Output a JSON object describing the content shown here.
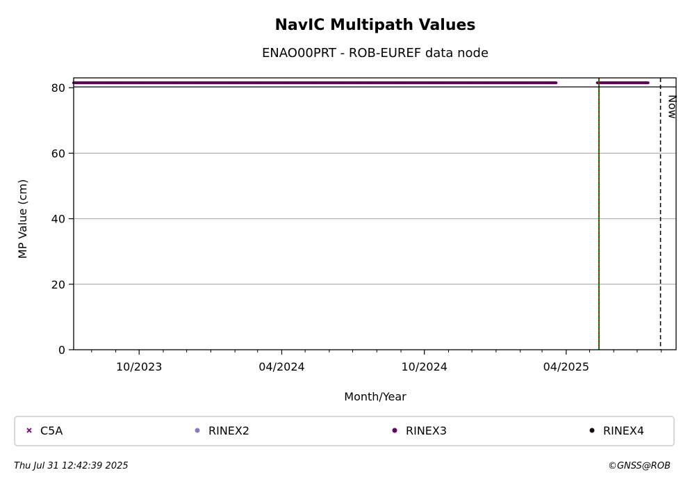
{
  "chart_data": {
    "type": "scatter",
    "title": "NavIC Multipath Values",
    "subtitle": "ENAO00PRT - ROB-EUREF data node",
    "xlabel": "Month/Year",
    "ylabel": "MP Value (cm)",
    "xlim": [
      "2023-07-09",
      "2025-08-20"
    ],
    "ylim": [
      0,
      83
    ],
    "y_clip": 80,
    "x_ticks": [
      {
        "date": "2023-10-01",
        "label": "10/2023"
      },
      {
        "date": "2024-04-01",
        "label": "04/2024"
      },
      {
        "date": "2024-10-01",
        "label": "10/2024"
      },
      {
        "date": "2025-04-01",
        "label": "04/2025"
      }
    ],
    "x_minor_ticks": [
      "2023-08-01",
      "2023-09-01",
      "2023-11-01",
      "2023-12-01",
      "2024-01-01",
      "2024-02-01",
      "2024-03-01",
      "2024-05-01",
      "2024-06-01",
      "2024-07-01",
      "2024-08-01",
      "2024-09-01",
      "2024-11-01",
      "2024-12-01",
      "2025-01-01",
      "2025-02-01",
      "2025-03-01",
      "2025-05-01",
      "2025-06-01",
      "2025-07-01",
      "2025-08-01"
    ],
    "y_ticks": [
      0,
      20,
      40,
      60,
      80
    ],
    "grid": "y",
    "series": [
      {
        "name": "C5A",
        "color": "#7b1a7b",
        "marker": "x",
        "segments": []
      },
      {
        "name": "RINEX2",
        "color": "#8080c0",
        "marker": "dot",
        "segments": []
      },
      {
        "name": "RINEX3",
        "color": "#660066",
        "marker": "dot",
        "y": 81.5,
        "segments": [
          [
            "2023-07-09",
            "2025-03-19"
          ],
          [
            "2025-05-11",
            "2025-07-15"
          ]
        ]
      },
      {
        "name": "RINEX4",
        "color": "#1a0a1a",
        "marker": "dot",
        "segments": []
      }
    ],
    "event_lines": [
      {
        "date": "2025-05-13",
        "colors": [
          "#008000",
          "#cc0000"
        ],
        "style": "dotted-alternating"
      }
    ],
    "now_line": {
      "date": "2025-07-31",
      "label": "Now"
    },
    "legend_position": "bottom"
  },
  "footer": {
    "timestamp": "Thu Jul 31 12:42:39 2025",
    "credit": "©GNSS@ROB"
  }
}
